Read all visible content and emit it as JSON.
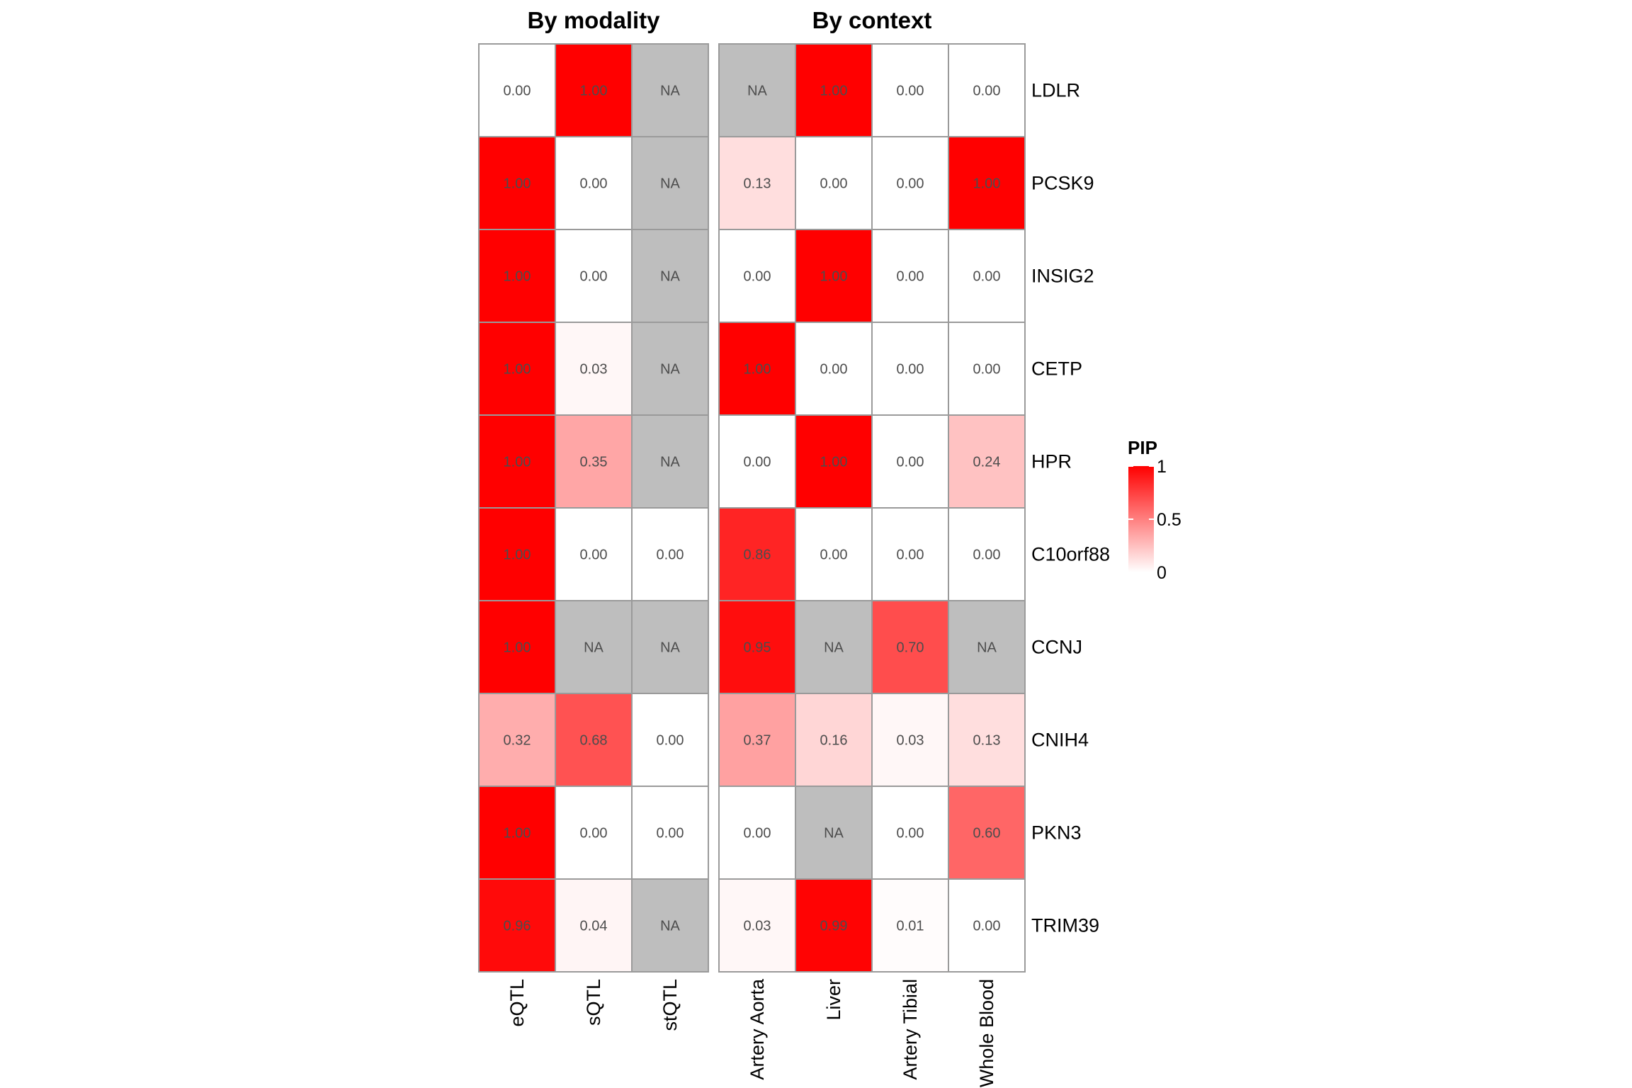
{
  "chart_data": {
    "type": "heatmap",
    "rows": [
      "LDLR",
      "PCSK9",
      "INSIG2",
      "CETP",
      "HPR",
      "C10orf88",
      "CCNJ",
      "CNIH4",
      "PKN3",
      "TRIM39"
    ],
    "panels": [
      {
        "title": "By modality",
        "columns": [
          "eQTL",
          "sQTL",
          "stQTL"
        ],
        "values": [
          [
            0.0,
            1.0,
            null
          ],
          [
            1.0,
            0.0,
            null
          ],
          [
            1.0,
            0.0,
            null
          ],
          [
            1.0,
            0.03,
            null
          ],
          [
            1.0,
            0.35,
            null
          ],
          [
            1.0,
            0.0,
            0.0
          ],
          [
            1.0,
            null,
            null
          ],
          [
            0.32,
            0.68,
            0.0
          ],
          [
            1.0,
            0.0,
            0.0
          ],
          [
            0.96,
            0.04,
            null
          ]
        ],
        "labels": [
          [
            "0.00",
            "1.00",
            "NA"
          ],
          [
            "1.00",
            "0.00",
            "NA"
          ],
          [
            "1.00",
            "0.00",
            "NA"
          ],
          [
            "1.00",
            "0.03",
            "NA"
          ],
          [
            "1.00",
            "0.35",
            "NA"
          ],
          [
            "1.00",
            "0.00",
            "0.00"
          ],
          [
            "1.00",
            "NA",
            "NA"
          ],
          [
            "0.32",
            "0.68",
            "0.00"
          ],
          [
            "1.00",
            "0.00",
            "0.00"
          ],
          [
            "0.96",
            "0.04",
            "NA"
          ]
        ]
      },
      {
        "title": "By context",
        "columns": [
          "Artery Aorta",
          "Liver",
          "Artery Tibial",
          "Whole Blood"
        ],
        "values": [
          [
            null,
            1.0,
            0.0,
            0.0
          ],
          [
            0.13,
            0.0,
            0.0,
            1.0
          ],
          [
            0.0,
            1.0,
            0.0,
            0.0
          ],
          [
            1.0,
            0.0,
            0.0,
            0.0
          ],
          [
            0.0,
            1.0,
            0.0,
            0.24
          ],
          [
            0.86,
            0.0,
            0.0,
            0.0
          ],
          [
            0.95,
            null,
            0.7,
            null
          ],
          [
            0.37,
            0.16,
            0.03,
            0.13
          ],
          [
            0.0,
            null,
            0.0,
            0.6
          ],
          [
            0.03,
            0.99,
            0.01,
            0.0
          ]
        ],
        "labels": [
          [
            "NA",
            "1.00",
            "0.00",
            "0.00"
          ],
          [
            "0.13",
            "0.00",
            "0.00",
            "1.00"
          ],
          [
            "0.00",
            "1.00",
            "0.00",
            "0.00"
          ],
          [
            "1.00",
            "0.00",
            "0.00",
            "0.00"
          ],
          [
            "0.00",
            "1.00",
            "0.00",
            "0.24"
          ],
          [
            "0.86",
            "0.00",
            "0.00",
            "0.00"
          ],
          [
            "0.95",
            "NA",
            "0.70",
            "NA"
          ],
          [
            "0.37",
            "0.16",
            "0.03",
            "0.13"
          ],
          [
            "0.00",
            "NA",
            "0.00",
            "0.60"
          ],
          [
            "0.03",
            "0.99",
            "0.01",
            "0.00"
          ]
        ]
      }
    ],
    "legend": {
      "title": "PIP",
      "ticks": [
        0,
        0.5,
        1
      ],
      "tick_labels": [
        "0",
        "0.5",
        "1"
      ],
      "range": [
        0,
        1
      ],
      "low_color": "#ffffff",
      "high_color": "#ff0000",
      "na_color": "#bebebe",
      "placement": "right"
    }
  }
}
